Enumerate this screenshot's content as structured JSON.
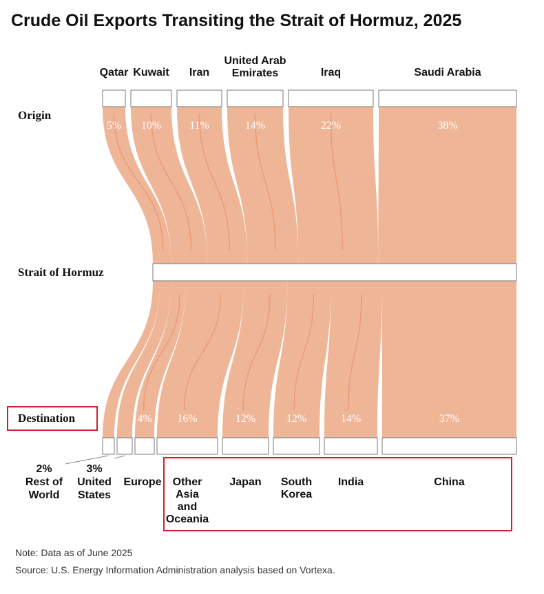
{
  "chart_data": {
    "type": "sankey",
    "title": "Crude Oil Exports Transiting the Strait of Hormuz, 2025",
    "stages": {
      "origin": "Origin",
      "strait": "Strait of Hormuz",
      "destination": "Destination"
    },
    "origins": [
      {
        "name": [
          "Qatar"
        ],
        "value": 5,
        "label": "5%"
      },
      {
        "name": [
          "Kuwait"
        ],
        "value": 10,
        "label": "10%"
      },
      {
        "name": [
          "Iran"
        ],
        "value": 11,
        "label": "11%"
      },
      {
        "name": [
          "United Arab",
          "Emirates"
        ],
        "value": 14,
        "label": "14%"
      },
      {
        "name": [
          "Iraq"
        ],
        "value": 22,
        "label": "22%"
      },
      {
        "name": [
          "Saudi Arabia"
        ],
        "value": 38,
        "label": "38%"
      }
    ],
    "destinations": [
      {
        "name": [
          "Rest of",
          "World"
        ],
        "value": 2,
        "label": "2%",
        "label_outside": true
      },
      {
        "name": [
          "United",
          "States"
        ],
        "value": 3,
        "label": "3%",
        "label_outside": true
      },
      {
        "name": [
          "Europe"
        ],
        "value": 4,
        "label": "4%"
      },
      {
        "name": [
          "Other",
          "Asia",
          "and",
          "Oceania"
        ],
        "value": 16,
        "label": "16%"
      },
      {
        "name": [
          "Japan"
        ],
        "value": 12,
        "label": "12%"
      },
      {
        "name": [
          "South",
          "Korea"
        ],
        "value": 12,
        "label": "12%"
      },
      {
        "name": [
          "India"
        ],
        "value": 14,
        "label": "14%"
      },
      {
        "name": [
          "China"
        ],
        "value": 37,
        "label": "37%"
      }
    ]
  },
  "notes": {
    "note": "Note: Data as of June 2025",
    "source": "Source: U.S. Energy Information Administration analysis based on Vortexa."
  },
  "highlight_color": "#d0202e",
  "flow_color": "#efb597"
}
